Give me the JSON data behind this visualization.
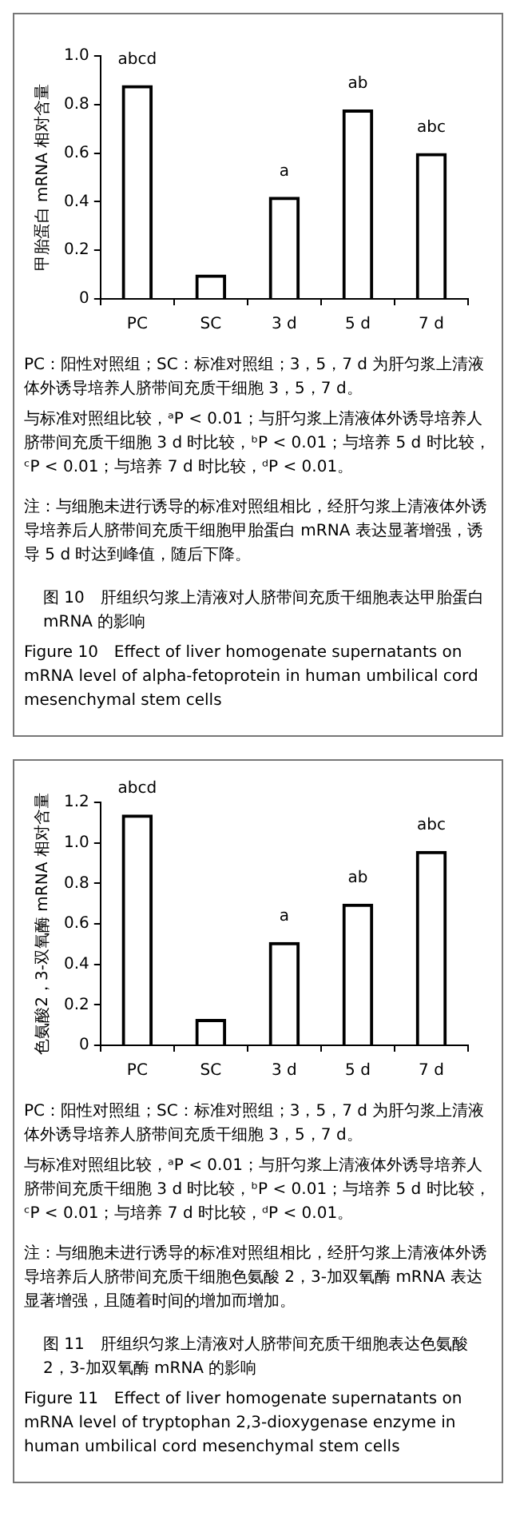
{
  "chart_data": [
    {
      "type": "bar",
      "title": "图 10　肝组织匀浆上清液对人脐带间充质干细胞表达甲胎蛋白 mRNA 的影响",
      "subtitle": "Figure 10　Effect of liver homogenate supernatants on mRNA level of alpha-fetoprotein in human umbilical cord mesenchymal stem cells",
      "ylabel": "甲胎蛋白 mRNA 相对含量",
      "categories": [
        "PC",
        "SC",
        "3 d",
        "5 d",
        "7 d"
      ],
      "values": [
        0.88,
        0.1,
        0.42,
        0.78,
        0.6
      ],
      "color": "#000000",
      "ylim": [
        0,
        1
      ],
      "yticks": [
        0,
        0.2,
        0.4,
        0.6,
        0.8,
        {
          "value": 1,
          "label": "1.0"
        }
      ],
      "annotations": [
        {
          "text": "abcd",
          "x": "PC",
          "y": 0.88
        },
        {
          "text": "a",
          "x": "3 d",
          "y": 0.42
        },
        {
          "text": "ab",
          "x": "5 d",
          "y": 0.78
        },
        {
          "text": "abc",
          "x": "7 d",
          "y": 0.6
        },
        "PC：阳性对照组；SC：标准对照组；3，5，7 d 为肝匀浆上清液体外诱导培养人脐带间充质干细胞 3，5，7 d。",
        "与标准对照组比较，ᵃP < 0.01；与肝匀浆上清液体外诱导培养人脐带间充质干细胞 3 d 时比较，ᵇP < 0.01；与培养 5 d 时比较，ᶜP < 0.01；与培养 7 d 时比较，ᵈP < 0.01。",
        "注：与细胞未进行诱导的标准对照组相比，经肝匀浆上清液体外诱导培养后人脐带间充质干细胞甲胎蛋白 mRNA 表达显著增强，诱导 5 d 时达到峰值，随后下降。"
      ]
    },
    {
      "type": "bar",
      "title": "图 11　肝组织匀浆上清液对人脐带间充质干细胞表达色氨酸 2，3-加双氧酶 mRNA 的影响",
      "subtitle": "Figure 11　Effect of liver homogenate supernatants on mRNA level of tryptophan 2,3-dioxygenase enzyme in human umbilical cord mesenchymal stem cells",
      "ylabel": "色氨酸2，3-双氧酶 mRNA 相对含量",
      "categories": [
        "PC",
        "SC",
        "3 d",
        "5 d",
        "7 d"
      ],
      "values": [
        1.14,
        0.13,
        0.51,
        0.7,
        0.96
      ],
      "color": "#000000",
      "ylim": [
        0,
        1.2
      ],
      "yticks": [
        0,
        0.2,
        0.4,
        0.6,
        0.8,
        {
          "value": 1,
          "label": "1.0"
        },
        1.2
      ],
      "annotations": [
        {
          "text": "abcd",
          "x": "PC",
          "y": 1.14
        },
        {
          "text": "a",
          "x": "3 d",
          "y": 0.51
        },
        {
          "text": "ab",
          "x": "5 d",
          "y": 0.7
        },
        {
          "text": "abc",
          "x": "7 d",
          "y": 0.96
        },
        "PC：阳性对照组；SC：标准对照组；3，5，7 d 为肝匀浆上清液体外诱导培养人脐带间充质干细胞 3，5，7 d。",
        "与标准对照组比较，ᵃP < 0.01；与肝匀浆上清液体外诱导培养人脐带间充质干细胞 3 d 时比较，ᵇP < 0.01；与培养 5 d 时比较，ᶜP < 0.01；与培养 7 d 时比较，ᵈP < 0.01。",
        "注：与细胞未进行诱导的标准对照组相比，经肝匀浆上清液体外诱导培养后人脐带间充质干细胞色氨酸 2，3-加双氧酶 mRNA 表达显著增强，且随着时间的增加而增加。"
      ]
    }
  ]
}
